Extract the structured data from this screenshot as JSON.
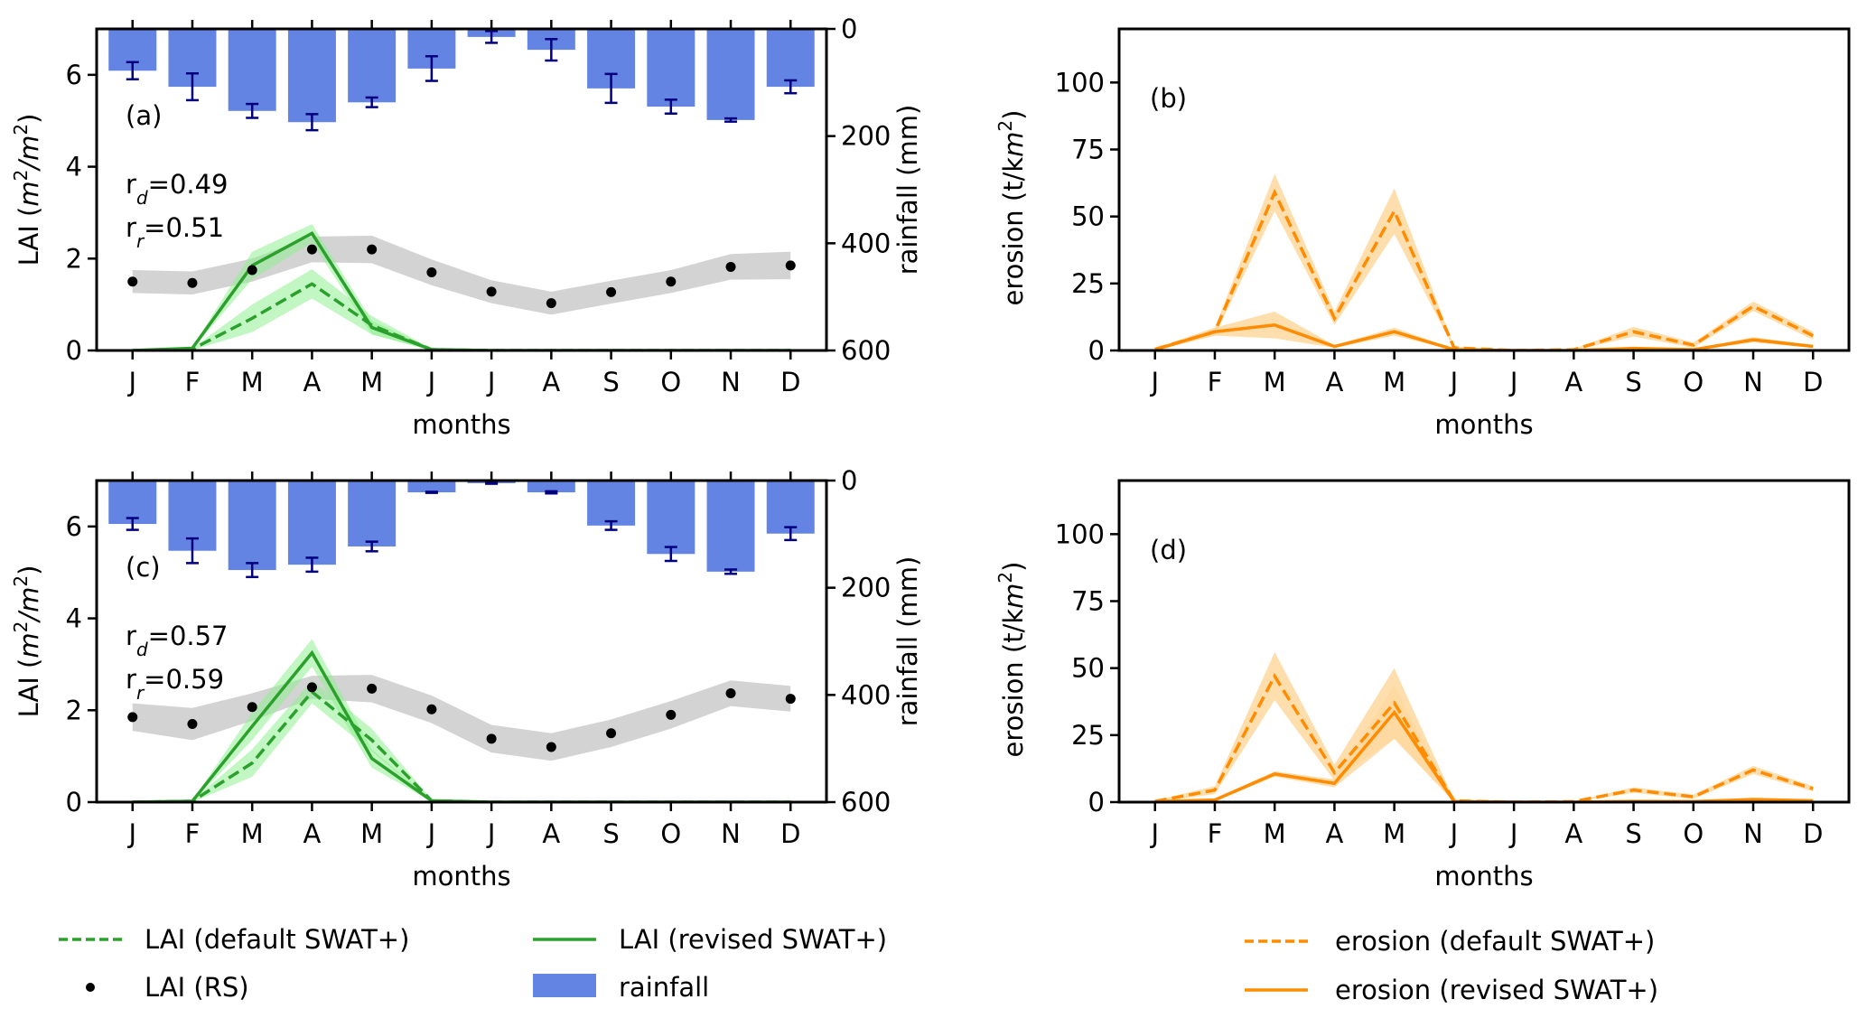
{
  "chart_data": [
    {
      "panel": "(a)",
      "type": "line",
      "x": [
        "J",
        "F",
        "M",
        "A",
        "M",
        "J",
        "J",
        "A",
        "S",
        "O",
        "N",
        "D"
      ],
      "xlabel": "months",
      "ylabel_left": "LAI (m²/m²)",
      "ylabel_left_base": "LAI (",
      "ylabel_left_unit": "m",
      "ylabel_right": "rainfall (mm)",
      "ylim_left": [
        0,
        7
      ],
      "yticks_left": [
        0,
        2,
        4,
        6
      ],
      "ylim_right_inverted": [
        600,
        0
      ],
      "yticks_right": [
        0,
        200,
        400,
        600
      ],
      "grid": false,
      "annotations": {
        "rd_label": "r",
        "rd_sub": "d",
        "rd_value": "=0.49",
        "rr_label": "r",
        "rr_sub": "r",
        "rr_value": "=0.51"
      },
      "series": [
        {
          "name": "LAI (RS)",
          "kind": "scatter",
          "values": [
            1.5,
            1.47,
            1.75,
            2.2,
            2.2,
            1.7,
            1.28,
            1.03,
            1.27,
            1.5,
            1.82,
            1.85
          ],
          "band": [
            0.25,
            0.25,
            0.25,
            0.28,
            0.3,
            0.28,
            0.25,
            0.25,
            0.25,
            0.25,
            0.28,
            0.3
          ]
        },
        {
          "name": "LAI (revised SWAT+)",
          "kind": "line-solid",
          "values": [
            0,
            0.05,
            1.85,
            2.55,
            0.5,
            0.02,
            0,
            0,
            0,
            0,
            0,
            0
          ],
          "band": [
            0,
            0.02,
            0.3,
            0.2,
            0.15,
            0.02,
            0,
            0,
            0,
            0,
            0,
            0
          ]
        },
        {
          "name": "LAI (default SWAT+)",
          "kind": "line-dashed",
          "values": [
            0,
            0.03,
            0.7,
            1.45,
            0.55,
            0.02,
            0,
            0,
            0,
            0,
            0,
            0
          ],
          "band": [
            0,
            0.02,
            0.3,
            0.32,
            0.2,
            0.02,
            0,
            0,
            0,
            0,
            0,
            0
          ]
        },
        {
          "name": "rainfall",
          "kind": "bar",
          "axis": "right",
          "values": [
            78,
            108,
            153,
            174,
            137,
            74,
            15,
            39,
            111,
            145,
            170,
            108
          ],
          "err": [
            16,
            25,
            13,
            15,
            9,
            23,
            11,
            20,
            27,
            13,
            3,
            12
          ]
        }
      ]
    },
    {
      "panel": "(b)",
      "type": "line",
      "x": [
        "J",
        "F",
        "M",
        "A",
        "M",
        "J",
        "J",
        "A",
        "S",
        "O",
        "N",
        "D"
      ],
      "xlabel": "months",
      "ylabel": "erosion (t/km²)",
      "ylabel_base": "erosion (t/k",
      "ylim": [
        0,
        120
      ],
      "yticks": [
        0,
        25,
        50,
        75,
        100
      ],
      "grid": false,
      "series": [
        {
          "name": "erosion (default SWAT+)",
          "kind": "line-dashed",
          "values": [
            0.5,
            7,
            59,
            12,
            52,
            1,
            0,
            0.3,
            7,
            2,
            16.5,
            5.5
          ],
          "band": [
            0.3,
            1.5,
            7,
            2.5,
            8.5,
            0.5,
            0,
            0.3,
            1.8,
            1,
            1.8,
            1.5
          ]
        },
        {
          "name": "erosion (revised SWAT+)",
          "kind": "line-solid",
          "values": [
            0.3,
            7,
            9.5,
            1.5,
            7,
            0.3,
            0,
            0,
            0.8,
            0.3,
            4,
            1.5
          ],
          "band": [
            0.3,
            1.5,
            5,
            0.5,
            1.5,
            0.2,
            0,
            0,
            0.5,
            0.2,
            1,
            0.5
          ]
        }
      ]
    },
    {
      "panel": "(c)",
      "type": "line",
      "x": [
        "J",
        "F",
        "M",
        "A",
        "M",
        "J",
        "J",
        "A",
        "S",
        "O",
        "N",
        "D"
      ],
      "xlabel": "months",
      "ylabel_left": "LAI (m²/m²)",
      "ylabel_left_base": "LAI (",
      "ylabel_left_unit": "m",
      "ylabel_right": "rainfall (mm)",
      "ylim_left": [
        0,
        7
      ],
      "yticks_left": [
        0,
        2,
        4,
        6
      ],
      "ylim_right_inverted": [
        600,
        0
      ],
      "yticks_right": [
        0,
        200,
        400,
        600
      ],
      "grid": false,
      "annotations": {
        "rd_label": "r",
        "rd_sub": "d",
        "rd_value": "=0.57",
        "rr_label": "r",
        "rr_sub": "r",
        "rr_value": "=0.59"
      },
      "series": [
        {
          "name": "LAI (RS)",
          "kind": "scatter",
          "values": [
            1.85,
            1.7,
            2.07,
            2.5,
            2.47,
            2.02,
            1.38,
            1.2,
            1.5,
            1.9,
            2.37,
            2.25
          ],
          "band": [
            0.3,
            0.35,
            0.3,
            0.25,
            0.3,
            0.3,
            0.3,
            0.3,
            0.3,
            0.3,
            0.28,
            0.28
          ]
        },
        {
          "name": "LAI (revised SWAT+)",
          "kind": "line-solid",
          "values": [
            0,
            0.02,
            1.65,
            3.25,
            0.95,
            0.03,
            0,
            0,
            0,
            0,
            0,
            0
          ],
          "band": [
            0,
            0.02,
            0.3,
            0.3,
            0.2,
            0.02,
            0,
            0,
            0,
            0,
            0,
            0
          ]
        },
        {
          "name": "LAI (default SWAT+)",
          "kind": "line-dashed",
          "values": [
            0,
            0.02,
            0.85,
            2.4,
            1.35,
            0.03,
            0,
            0,
            0,
            0,
            0,
            0
          ],
          "band": [
            0,
            0.02,
            0.3,
            0.25,
            0.25,
            0.02,
            0,
            0,
            0,
            0,
            0,
            0
          ]
        },
        {
          "name": "rainfall",
          "kind": "bar",
          "axis": "right",
          "values": [
            81,
            131,
            167,
            157,
            123,
            22,
            5,
            22,
            84,
            137,
            170,
            99
          ],
          "err": [
            11,
            23,
            13,
            13,
            9,
            1,
            1,
            2,
            8,
            13,
            4,
            12
          ]
        }
      ]
    },
    {
      "panel": "(d)",
      "type": "line",
      "x": [
        "J",
        "F",
        "M",
        "A",
        "M",
        "J",
        "J",
        "A",
        "S",
        "O",
        "N",
        "D"
      ],
      "xlabel": "months",
      "ylabel": "erosion (t/km²)",
      "ylabel_base": "erosion (t/k",
      "ylim": [
        0,
        120
      ],
      "yticks": [
        0,
        25,
        50,
        75,
        100
      ],
      "grid": false,
      "series": [
        {
          "name": "erosion (default SWAT+)",
          "kind": "line-dashed",
          "values": [
            0.3,
            4.5,
            47,
            11,
            37,
            0.5,
            0,
            0.2,
            4.5,
            2,
            12,
            5
          ],
          "band": [
            0.3,
            1.5,
            9,
            3,
            13,
            0.4,
            0,
            0.2,
            1,
            0.8,
            1.5,
            1
          ]
        },
        {
          "name": "erosion (revised SWAT+)",
          "kind": "line-solid",
          "values": [
            0.2,
            0.8,
            10.5,
            7,
            33.5,
            0.2,
            0,
            0,
            0.3,
            0.2,
            1,
            0.5
          ],
          "band": [
            0.2,
            0.5,
            1,
            1.5,
            10,
            0.2,
            0,
            0,
            0.3,
            0.2,
            0.5,
            0.3
          ]
        }
      ]
    }
  ],
  "legend_left": [
    {
      "label": "LAI (default SWAT+)",
      "kind": "line-dashed"
    },
    {
      "label": "LAI (revised SWAT+)",
      "kind": "line-solid"
    },
    {
      "label": "LAI (RS)",
      "kind": "dot"
    },
    {
      "label": "rainfall",
      "kind": "patch"
    }
  ],
  "legend_right": [
    {
      "label": "erosion (default SWAT+)",
      "kind": "line-dashed"
    },
    {
      "label": "erosion (revised SWAT+)",
      "kind": "line-solid"
    }
  ],
  "colors": {
    "lai_line": "#2ca02c",
    "lai_band": "#90ee90",
    "rs_band": "#c8c8c8",
    "rs_dot": "#000000",
    "rain_bar": "#6384e3",
    "rain_err": "#00007f",
    "erosion_line": "#ff8c00",
    "erosion_band": "#ffd8a0"
  }
}
